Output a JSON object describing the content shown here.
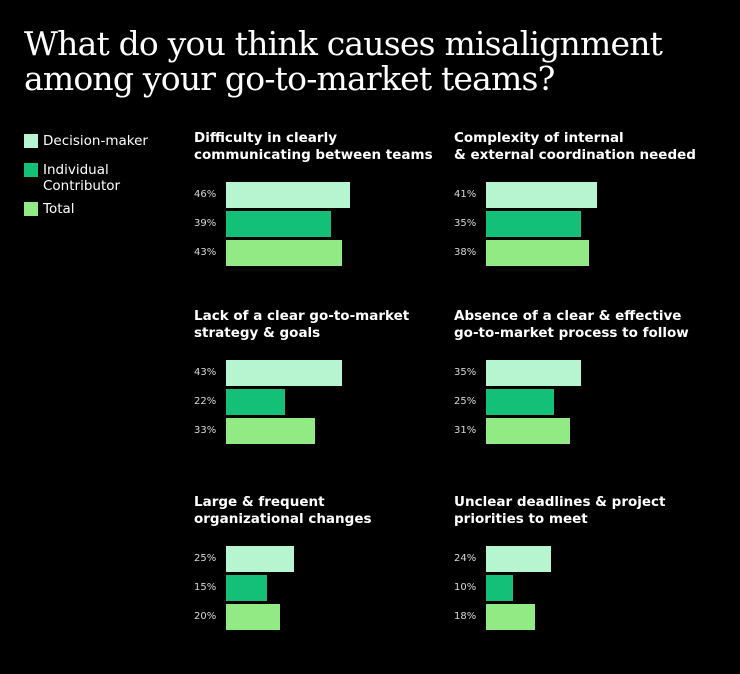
{
  "title": {
    "line1": "What do you think causes misalignment",
    "line2": "among your go-to-market teams?"
  },
  "colors": {
    "decision_maker": "#b6f5cf",
    "individual_contributor": "#14c078",
    "total": "#92ea84"
  },
  "legend": [
    {
      "label": "Decision-maker",
      "swatch": "decision_maker"
    },
    {
      "label": "Individual Contributor",
      "swatch": "individual_contributor"
    },
    {
      "label": "Total",
      "swatch": "total"
    }
  ],
  "chart_data": [
    {
      "type": "bar",
      "title_lines": [
        "Difficulty in clearly",
        "communicating between teams"
      ],
      "series": [
        {
          "name": "Decision-maker",
          "value": 46,
          "label": "46%"
        },
        {
          "name": "Individual Contributor",
          "value": 39,
          "label": "39%"
        },
        {
          "name": "Total",
          "value": 43,
          "label": "43%"
        }
      ]
    },
    {
      "type": "bar",
      "title_lines": [
        "Complexity of internal",
        "& external coordination needed"
      ],
      "series": [
        {
          "name": "Decision-maker",
          "value": 41,
          "label": "41%"
        },
        {
          "name": "Individual Contributor",
          "value": 35,
          "label": "35%"
        },
        {
          "name": "Total",
          "value": 38,
          "label": "38%"
        }
      ]
    },
    {
      "type": "bar",
      "title_lines": [
        "Lack of a clear go-to-market",
        "strategy & goals"
      ],
      "series": [
        {
          "name": "Decision-maker",
          "value": 43,
          "label": "43%"
        },
        {
          "name": "Individual Contributor",
          "value": 22,
          "label": "22%"
        },
        {
          "name": "Total",
          "value": 33,
          "label": "33%"
        }
      ]
    },
    {
      "type": "bar",
      "title_lines": [
        "Absence of a clear & effective",
        "go-to-market process to follow"
      ],
      "series": [
        {
          "name": "Decision-maker",
          "value": 35,
          "label": "35%"
        },
        {
          "name": "Individual Contributor",
          "value": 25,
          "label": "25%"
        },
        {
          "name": "Total",
          "value": 31,
          "label": "31%"
        }
      ]
    },
    {
      "type": "bar",
      "title_lines": [
        "Large & frequent",
        "organizational changes"
      ],
      "series": [
        {
          "name": "Decision-maker",
          "value": 25,
          "label": "25%"
        },
        {
          "name": "Individual Contributor",
          "value": 15,
          "label": "15%"
        },
        {
          "name": "Total",
          "value": 20,
          "label": "20%"
        }
      ]
    },
    {
      "type": "bar",
      "title_lines": [
        "Unclear deadlines & project",
        "priorities to meet"
      ],
      "series": [
        {
          "name": "Decision-maker",
          "value": 24,
          "label": "24%"
        },
        {
          "name": "Individual Contributor",
          "value": 10,
          "label": "10%"
        },
        {
          "name": "Total",
          "value": 18,
          "label": "18%"
        }
      ]
    }
  ]
}
